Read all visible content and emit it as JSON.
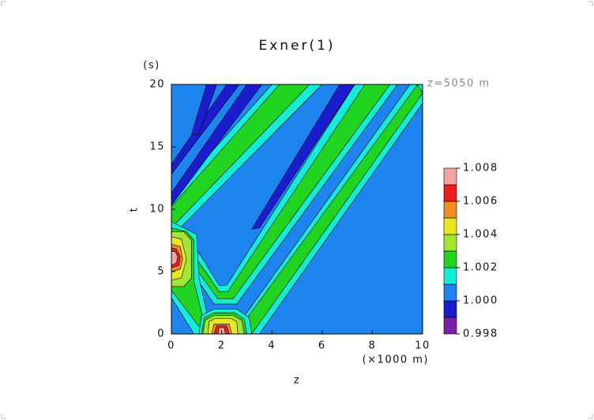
{
  "chart_data": {
    "type": "contour",
    "title": "Exner(1)",
    "x_label": "z",
    "x_unit": "(×1000 m)",
    "y_label": "t",
    "y_unit": "(s)",
    "annotation": "z=5050 m",
    "xlim": [
      0,
      10
    ],
    "ylim": [
      0,
      20
    ],
    "xticks": [
      0,
      2,
      4,
      6,
      8,
      10
    ],
    "yticks": [
      0,
      5,
      10,
      15,
      20
    ],
    "levels": [
      0.998,
      0.999,
      1,
      1.001,
      1.002,
      1.003,
      1.004,
      1.005,
      1.006,
      1.007,
      1.008
    ],
    "colors": [
      "#7b1fa8",
      "#1c1ccf",
      "#1e84f0",
      "#14ecd8",
      "#22d422",
      "#a2e632",
      "#e8e820",
      "#f08c24",
      "#ee1e1e",
      "#f4a4a4"
    ],
    "colorbar_ticks": [
      0.998,
      {
        "value": 1,
        "label": "1.000"
      },
      1.002,
      1.004,
      1.006,
      1.008
    ],
    "regions": [
      {
        "level": 1,
        "points": [
          [
            0,
            0
          ],
          [
            10,
            0
          ],
          [
            10,
            20
          ],
          [
            0,
            20
          ]
        ]
      },
      {
        "level": 1.001,
        "points": [
          [
            0,
            7.8
          ],
          [
            0,
            11
          ],
          [
            4.0,
            20
          ],
          [
            6.0,
            20
          ]
        ]
      },
      {
        "level": 1.002,
        "points": [
          [
            0,
            8.5
          ],
          [
            0,
            10.2
          ],
          [
            4.3,
            20
          ],
          [
            5.5,
            20
          ]
        ]
      },
      {
        "level": 1.001,
        "points": [
          [
            0.2,
            6.8
          ],
          [
            1.7,
            2.4
          ],
          [
            2.6,
            2.4
          ],
          [
            9.0,
            20
          ],
          [
            7.3,
            20
          ],
          [
            2.2,
            3.9
          ],
          [
            1.9,
            3.9
          ],
          [
            1.0,
            6.8
          ]
        ]
      },
      {
        "level": 1.002,
        "points": [
          [
            0.5,
            6.6
          ],
          [
            1.85,
            2.8
          ],
          [
            2.45,
            2.8
          ],
          [
            8.7,
            20
          ],
          [
            7.7,
            20
          ],
          [
            2.25,
            3.4
          ],
          [
            1.9,
            3.4
          ],
          [
            0.8,
            6.6
          ]
        ]
      },
      {
        "level": 1.001,
        "points": [
          [
            2.4,
            0
          ],
          [
            3.5,
            0
          ],
          [
            10,
            18.5
          ],
          [
            10,
            20
          ],
          [
            9.5,
            20
          ]
        ]
      },
      {
        "level": 1.002,
        "points": [
          [
            2.55,
            0
          ],
          [
            3.2,
            0
          ],
          [
            10,
            19.3
          ],
          [
            9.8,
            20
          ]
        ]
      },
      {
        "level": 1.001,
        "points": [
          [
            0,
            2.9
          ],
          [
            0,
            9.0
          ],
          [
            1.0,
            8.0
          ],
          [
            1.1,
            4.5
          ],
          [
            1.6,
            0
          ],
          [
            0.9,
            0
          ]
        ]
      },
      {
        "level": 1.002,
        "points": [
          [
            0,
            3.5
          ],
          [
            0,
            8.5
          ],
          [
            0.6,
            8.2
          ],
          [
            0.9,
            7.5
          ],
          [
            0.9,
            4.2
          ],
          [
            1.3,
            0.9
          ],
          [
            1.1,
            0.6
          ]
        ]
      },
      {
        "level": 1.003,
        "points": [
          [
            0,
            3.8
          ],
          [
            0.5,
            3.8
          ],
          [
            0.8,
            4.5
          ],
          [
            0.8,
            7.5
          ],
          [
            0.5,
            8.2
          ],
          [
            0,
            8.2
          ]
        ]
      },
      {
        "level": 1.004,
        "points": [
          [
            0,
            4.3
          ],
          [
            0.4,
            4.5
          ],
          [
            0.6,
            6.0
          ],
          [
            0.4,
            7.6
          ],
          [
            0,
            7.8
          ]
        ]
      },
      {
        "level": 1.005,
        "points": [
          [
            0,
            5.0
          ],
          [
            0.35,
            5.2
          ],
          [
            0.45,
            6.0
          ],
          [
            0.35,
            7.0
          ],
          [
            0,
            7.2
          ]
        ]
      },
      {
        "level": 1.006,
        "points": [
          [
            0,
            5.3
          ],
          [
            0.3,
            5.5
          ],
          [
            0.35,
            6.2
          ],
          [
            0.2,
            6.8
          ],
          [
            0,
            6.9
          ]
        ]
      },
      {
        "level": 1.007,
        "points": [
          [
            0,
            5.5
          ],
          [
            0.2,
            5.7
          ],
          [
            0.25,
            6.2
          ],
          [
            0.15,
            6.6
          ],
          [
            0,
            6.6
          ]
        ]
      },
      {
        "level": 1.001,
        "points": [
          [
            1.1,
            0
          ],
          [
            1.2,
            1.5
          ],
          [
            1.7,
            2.0
          ],
          [
            2.6,
            2.0
          ],
          [
            3.1,
            1.3
          ],
          [
            3.2,
            0
          ]
        ]
      },
      {
        "level": 1.002,
        "points": [
          [
            1.2,
            0
          ],
          [
            1.3,
            1.3
          ],
          [
            1.7,
            1.7
          ],
          [
            2.5,
            1.7
          ],
          [
            2.9,
            1.2
          ],
          [
            3.0,
            0
          ]
        ]
      },
      {
        "level": 1.003,
        "points": [
          [
            1.25,
            0
          ],
          [
            1.35,
            1.1
          ],
          [
            1.7,
            1.5
          ],
          [
            2.45,
            1.5
          ],
          [
            2.8,
            1.1
          ],
          [
            2.9,
            0
          ]
        ]
      },
      {
        "level": 1.004,
        "points": [
          [
            1.45,
            0
          ],
          [
            1.5,
            1.0
          ],
          [
            1.75,
            1.25
          ],
          [
            2.35,
            1.25
          ],
          [
            2.6,
            1.0
          ],
          [
            2.65,
            0
          ]
        ]
      },
      {
        "level": 1.005,
        "points": [
          [
            1.6,
            0
          ],
          [
            1.7,
            0.8
          ],
          [
            2.3,
            0.8
          ],
          [
            2.4,
            0
          ]
        ]
      },
      {
        "level": 1.006,
        "points": [
          [
            1.7,
            0
          ],
          [
            1.8,
            0.65
          ],
          [
            2.2,
            0.65
          ],
          [
            2.3,
            0
          ]
        ]
      },
      {
        "level": 1.007,
        "points": [
          [
            1.85,
            0
          ],
          [
            1.9,
            0.5
          ],
          [
            2.1,
            0.5
          ],
          [
            2.15,
            0
          ]
        ]
      },
      {
        "level": 0.999,
        "points": [
          [
            3.2,
            8.4
          ],
          [
            3.5,
            8.5
          ],
          [
            7.3,
            20
          ],
          [
            6.7,
            20
          ]
        ]
      },
      {
        "level": 0.999,
        "points": [
          [
            0,
            10.3
          ],
          [
            0,
            11.3
          ],
          [
            3.0,
            20
          ],
          [
            3.6,
            20
          ]
        ]
      },
      {
        "level": 0.999,
        "points": [
          [
            0,
            12.8
          ],
          [
            0,
            13.6
          ],
          [
            2.2,
            20
          ],
          [
            2.7,
            20
          ]
        ]
      },
      {
        "level": 0.999,
        "points": [
          [
            0.8,
            16
          ],
          [
            1.1,
            16
          ],
          [
            1.8,
            20
          ],
          [
            1.4,
            20
          ]
        ]
      }
    ]
  }
}
